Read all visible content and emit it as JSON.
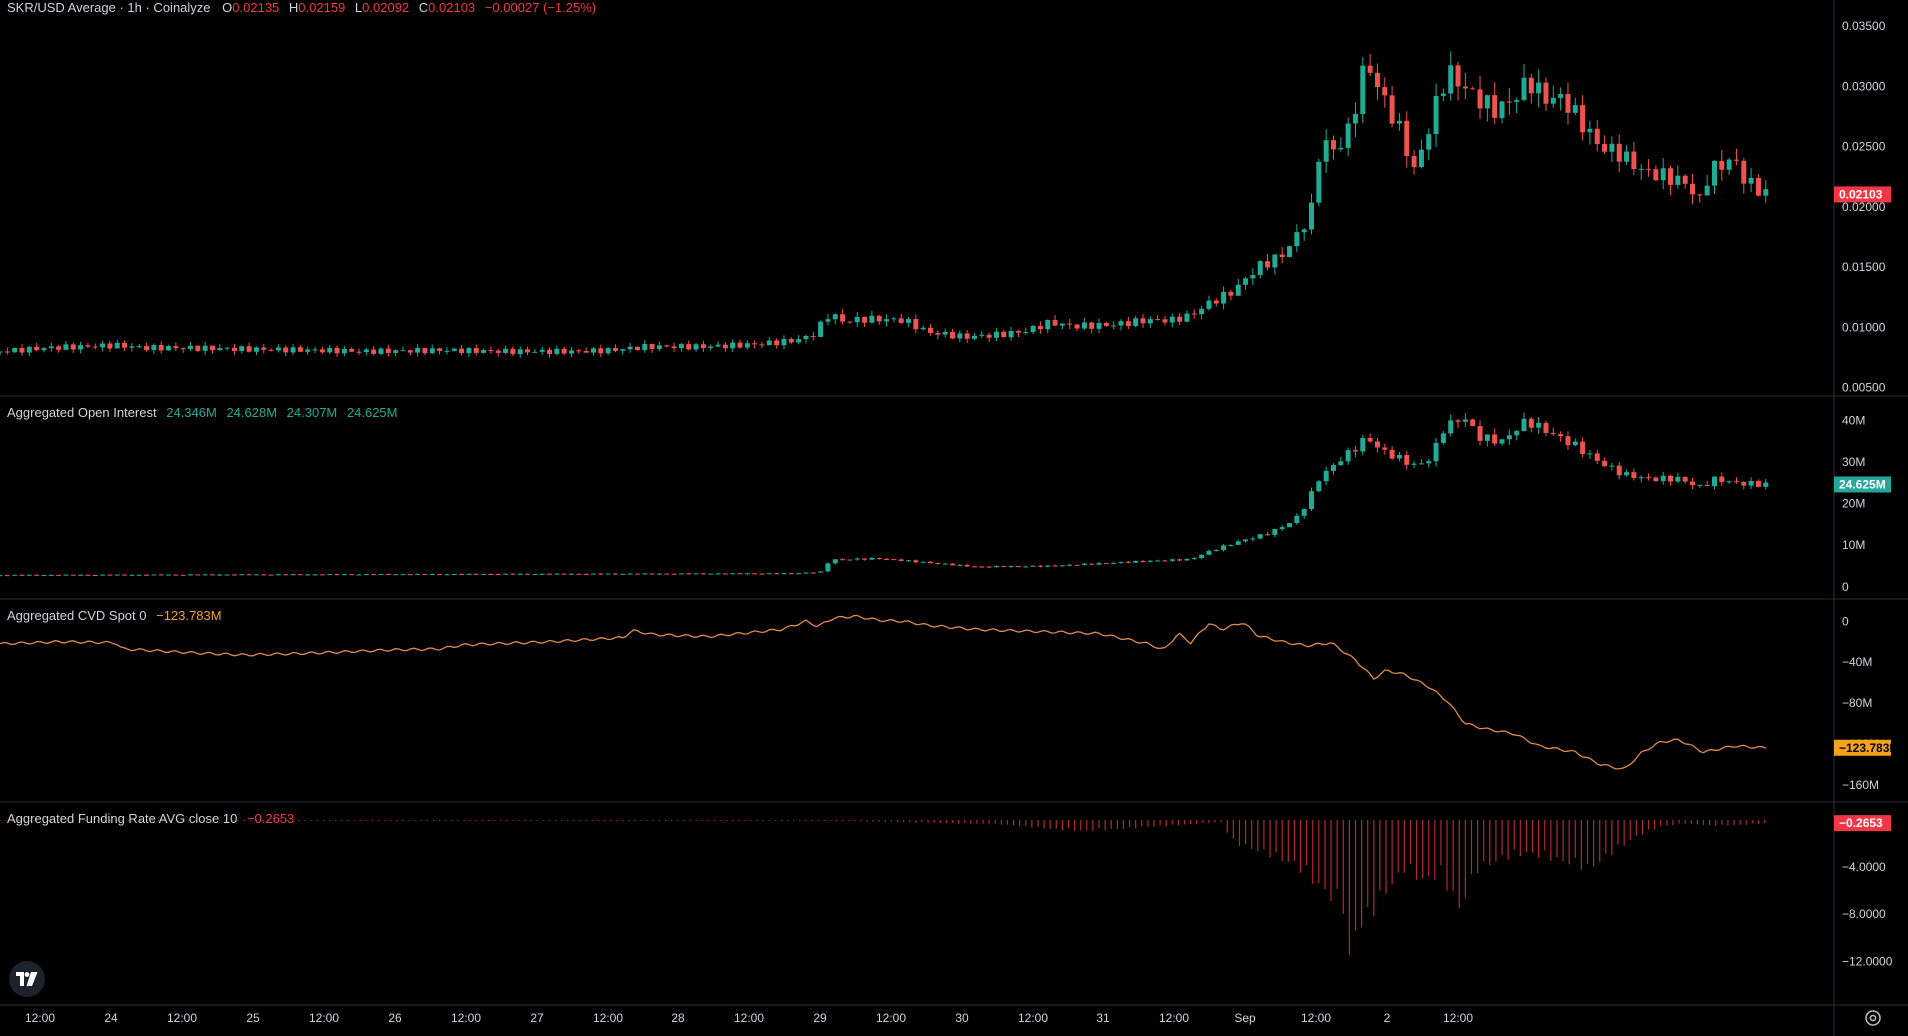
{
  "header": {
    "symbol": "SKR/USD Average · 1h · Coinalyze",
    "ohlc": [
      {
        "k": "O",
        "v": "0.02135"
      },
      {
        "k": "H",
        "v": "0.02159"
      },
      {
        "k": "L",
        "v": "0.02092"
      },
      {
        "k": "C",
        "v": "0.02103"
      }
    ],
    "change": "−0.00027 (−1.25%)"
  },
  "colors": {
    "up": "#22ab94",
    "down": "#ef5350",
    "cvd": "#e0894a",
    "funding": "#b22833",
    "grid_border": "#2a2e39",
    "axis_text": "#d1d4dc",
    "cvd_tag": "#f7a21b",
    "oi_tag": "#26a69a",
    "price_tag": "#f23645"
  },
  "chart_data": [
    {
      "type": "candlestick",
      "title": "SKR/USD Average · 1h · Coinalyze",
      "ylim": [
        0.0048,
        0.0365
      ],
      "yticks": [
        "0.03500",
        "0.03000",
        "0.02500",
        "0.02000",
        "0.01500",
        "0.01000",
        "0.00500"
      ],
      "ytick_values": [
        0.035,
        0.03,
        0.025,
        0.02,
        0.015,
        0.01,
        0.005
      ],
      "last_value": "0.02103",
      "close_anchors": [
        [
          0,
          0.008
        ],
        [
          40,
          0.0083
        ],
        [
          95,
          0.0085
        ],
        [
          120,
          0.0083
        ],
        [
          150,
          0.0083
        ],
        [
          200,
          0.0082
        ],
        [
          260,
          0.0081
        ],
        [
          300,
          0.008
        ],
        [
          360,
          0.0081
        ],
        [
          420,
          0.008
        ],
        [
          470,
          0.008
        ],
        [
          500,
          0.0081
        ],
        [
          530,
          0.0084
        ],
        [
          580,
          0.0084
        ],
        [
          620,
          0.0086
        ],
        [
          650,
          0.0089
        ],
        [
          665,
          0.0093
        ],
        [
          680,
          0.0112
        ],
        [
          690,
          0.0105
        ],
        [
          710,
          0.0107
        ],
        [
          740,
          0.0106
        ],
        [
          760,
          0.0096
        ],
        [
          790,
          0.0092
        ],
        [
          820,
          0.0094
        ],
        [
          840,
          0.0097
        ],
        [
          860,
          0.0104
        ],
        [
          880,
          0.0101
        ],
        [
          910,
          0.0102
        ],
        [
          940,
          0.0106
        ],
        [
          960,
          0.0106
        ],
        [
          975,
          0.011
        ],
        [
          990,
          0.012
        ],
        [
          1010,
          0.013
        ],
        [
          1030,
          0.015
        ],
        [
          1050,
          0.016
        ],
        [
          1065,
          0.018
        ],
        [
          1075,
          0.02
        ],
        [
          1082,
          0.026
        ],
        [
          1090,
          0.0245
        ],
        [
          1100,
          0.0255
        ],
        [
          1108,
          0.027
        ],
        [
          1112,
          0.03
        ],
        [
          1120,
          0.032
        ],
        [
          1128,
          0.03
        ],
        [
          1138,
          0.028
        ],
        [
          1148,
          0.026
        ],
        [
          1158,
          0.023
        ],
        [
          1165,
          0.025
        ],
        [
          1172,
          0.027
        ],
        [
          1180,
          0.03
        ],
        [
          1188,
          0.031
        ],
        [
          1198,
          0.03
        ],
        [
          1210,
          0.029
        ],
        [
          1225,
          0.028
        ],
        [
          1240,
          0.029
        ],
        [
          1252,
          0.0305
        ],
        [
          1265,
          0.029
        ],
        [
          1280,
          0.029
        ],
        [
          1295,
          0.027
        ],
        [
          1310,
          0.025
        ],
        [
          1325,
          0.0245
        ],
        [
          1345,
          0.023
        ],
        [
          1365,
          0.0225
        ],
        [
          1380,
          0.022
        ],
        [
          1392,
          0.0205
        ],
        [
          1400,
          0.023
        ],
        [
          1410,
          0.0235
        ],
        [
          1420,
          0.024
        ],
        [
          1430,
          0.022
        ],
        [
          1440,
          0.0215
        ],
        [
          1447,
          0.021
        ]
      ]
    },
    {
      "type": "candlestick",
      "title": "Aggregated Open Interest",
      "legend_values": [
        "24.346M",
        "24.628M",
        "24.307M",
        "24.625M"
      ],
      "ylim": [
        -1.5,
        44
      ],
      "yticks": [
        "40M",
        "30M",
        "20M",
        "10M",
        "0"
      ],
      "ytick_values": [
        40,
        30,
        20,
        10,
        0
      ],
      "last_value": "24.625M",
      "close_anchors": [
        [
          0,
          2.8
        ],
        [
          650,
          3.2
        ],
        [
          672,
          3.6
        ],
        [
          680,
          6.5
        ],
        [
          720,
          6.8
        ],
        [
          760,
          5.8
        ],
        [
          800,
          4.8
        ],
        [
          860,
          5.0
        ],
        [
          940,
          6.2
        ],
        [
          975,
          6.6
        ],
        [
          990,
          8.5
        ],
        [
          1010,
          10.5
        ],
        [
          1040,
          13
        ],
        [
          1060,
          16
        ],
        [
          1070,
          20
        ],
        [
          1080,
          26
        ],
        [
          1095,
          30
        ],
        [
          1108,
          33
        ],
        [
          1120,
          36
        ],
        [
          1130,
          33
        ],
        [
          1145,
          31
        ],
        [
          1160,
          29
        ],
        [
          1172,
          31
        ],
        [
          1182,
          38
        ],
        [
          1198,
          41
        ],
        [
          1212,
          36
        ],
        [
          1230,
          35
        ],
        [
          1250,
          40
        ],
        [
          1270,
          37
        ],
        [
          1290,
          34
        ],
        [
          1310,
          30
        ],
        [
          1330,
          27
        ],
        [
          1350,
          26
        ],
        [
          1375,
          26
        ],
        [
          1392,
          24
        ],
        [
          1405,
          26
        ],
        [
          1420,
          25
        ],
        [
          1447,
          24.6
        ]
      ]
    },
    {
      "type": "line",
      "title": "Aggregated CVD Spot 0",
      "legend_values": [
        "−123.783M"
      ],
      "ylim": [
        -171,
        14
      ],
      "yticks": [
        "0",
        "−40M",
        "−80M",
        "−120M",
        "−160M"
      ],
      "ytick_values": [
        0,
        -40,
        -80,
        -120,
        -160
      ],
      "last_value": "−123.783M",
      "points": [
        [
          0,
          -22
        ],
        [
          50,
          -20
        ],
        [
          95,
          -21
        ],
        [
          100,
          -27
        ],
        [
          160,
          -31
        ],
        [
          200,
          -33
        ],
        [
          260,
          -31
        ],
        [
          320,
          -28
        ],
        [
          360,
          -27
        ],
        [
          380,
          -23
        ],
        [
          450,
          -20
        ],
        [
          510,
          -16
        ],
        [
          518,
          -9
        ],
        [
          535,
          -13
        ],
        [
          580,
          -15
        ],
        [
          640,
          -8
        ],
        [
          660,
          0
        ],
        [
          670,
          -5
        ],
        [
          682,
          3
        ],
        [
          700,
          5
        ],
        [
          720,
          1
        ],
        [
          740,
          0
        ],
        [
          760,
          -4
        ],
        [
          800,
          -8
        ],
        [
          850,
          -10
        ],
        [
          900,
          -12
        ],
        [
          920,
          -17
        ],
        [
          940,
          -22
        ],
        [
          953,
          -28
        ],
        [
          965,
          -12
        ],
        [
          975,
          -21
        ],
        [
          990,
          -2
        ],
        [
          1000,
          -8
        ],
        [
          1018,
          -1
        ],
        [
          1030,
          -14
        ],
        [
          1050,
          -20
        ],
        [
          1070,
          -24
        ],
        [
          1090,
          -21
        ],
        [
          1110,
          -38
        ],
        [
          1125,
          -56
        ],
        [
          1135,
          -48
        ],
        [
          1150,
          -52
        ],
        [
          1170,
          -64
        ],
        [
          1185,
          -78
        ],
        [
          1200,
          -100
        ],
        [
          1215,
          -105
        ],
        [
          1240,
          -110
        ],
        [
          1260,
          -122
        ],
        [
          1290,
          -128
        ],
        [
          1310,
          -140
        ],
        [
          1330,
          -145
        ],
        [
          1345,
          -128
        ],
        [
          1360,
          -118
        ],
        [
          1375,
          -116
        ],
        [
          1395,
          -128
        ],
        [
          1420,
          -122
        ],
        [
          1447,
          -124
        ]
      ]
    },
    {
      "type": "bar",
      "title": "Aggregated Funding Rate AVG close 10",
      "legend_values": [
        "−0.2653"
      ],
      "ylim": [
        -15.2,
        0.85
      ],
      "yticks": [
        "−4.0000",
        "−8.0000",
        "−12.0000"
      ],
      "ytick_values": [
        -4,
        -8,
        -12
      ],
      "last_value": "−0.2653",
      "points": [
        [
          0,
          -0.05
        ],
        [
          700,
          -0.1
        ],
        [
          820,
          -0.4
        ],
        [
          860,
          -0.8
        ],
        [
          890,
          -1.0
        ],
        [
          1000,
          -0.2
        ],
        [
          1010,
          -2.0
        ],
        [
          1040,
          -3.2
        ],
        [
          1060,
          -4.0
        ],
        [
          1075,
          -5.5
        ],
        [
          1090,
          -7.0
        ],
        [
          1100,
          -8.0
        ],
        [
          1104,
          -14
        ],
        [
          1110,
          -10
        ],
        [
          1120,
          -9.0
        ],
        [
          1135,
          -6.5
        ],
        [
          1150,
          -4.5
        ],
        [
          1165,
          -5.5
        ],
        [
          1180,
          -5.0
        ],
        [
          1195,
          -8.0
        ],
        [
          1210,
          -4.5
        ],
        [
          1230,
          -3.5
        ],
        [
          1250,
          -3.0
        ],
        [
          1270,
          -3.5
        ],
        [
          1290,
          -4.0
        ],
        [
          1300,
          -4.5
        ],
        [
          1320,
          -3.0
        ],
        [
          1340,
          -1.5
        ],
        [
          1360,
          -0.6
        ],
        [
          1380,
          -0.3
        ],
        [
          1400,
          -0.5
        ],
        [
          1420,
          -0.5
        ],
        [
          1447,
          -0.27
        ]
      ]
    }
  ],
  "x_axis": {
    "labels": [
      {
        "text": "12:00",
        "pos": 40
      },
      {
        "text": "24",
        "pos": 111
      },
      {
        "text": "12:00",
        "pos": 182
      },
      {
        "text": "25",
        "pos": 253
      },
      {
        "text": "12:00",
        "pos": 324
      },
      {
        "text": "26",
        "pos": 395
      },
      {
        "text": "12:00",
        "pos": 466
      },
      {
        "text": "27",
        "pos": 537
      },
      {
        "text": "12:00",
        "pos": 608
      },
      {
        "text": "28",
        "pos": 678
      },
      {
        "text": "12:00",
        "pos": 749
      },
      {
        "text": "29",
        "pos": 820
      },
      {
        "text": "12:00",
        "pos": 891
      },
      {
        "text": "30",
        "pos": 962
      },
      {
        "text": "12:00",
        "pos": 1033
      },
      {
        "text": "31",
        "pos": 1103
      },
      {
        "text": "12:00",
        "pos": 1174
      },
      {
        "text": "Sep",
        "pos": 1245
      },
      {
        "text": "12:00",
        "pos": 1316
      },
      {
        "text": "2",
        "pos": 1387
      },
      {
        "text": "12:00",
        "pos": 1458
      }
    ]
  },
  "icons": {
    "logo": "tradingview-logo-icon",
    "settings": "settings-gear-icon"
  }
}
